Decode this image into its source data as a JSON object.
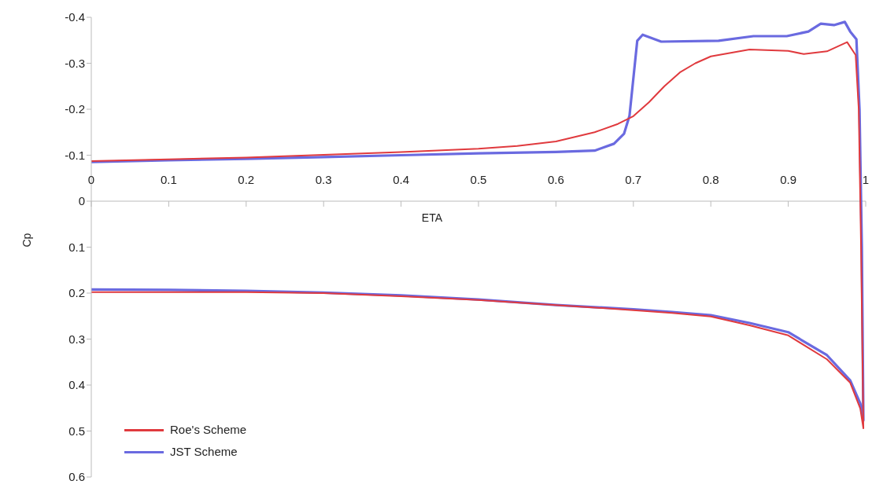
{
  "chart_data": {
    "type": "line",
    "xlabel": "ETA",
    "ylabel": "Cp",
    "xlim": [
      0,
      1
    ],
    "xticks": [
      0,
      0.1,
      0.2,
      0.3,
      0.4,
      0.5,
      0.6,
      0.7,
      0.8,
      0.9,
      1
    ],
    "ylim": [
      0.6,
      -0.4
    ],
    "yticks": [
      -0.4,
      -0.3,
      -0.2,
      -0.1,
      0,
      0.1,
      0.2,
      0.3,
      0.4,
      0.5,
      0.6
    ],
    "grid": false,
    "legend": "bottom left",
    "marker": "none",
    "line_style": "solid",
    "series": [
      {
        "name": "Roe's Scheme",
        "color": "#e03a3e",
        "x": [
          0,
          0.1,
          0.2,
          0.3,
          0.4,
          0.5,
          0.55,
          0.6,
          0.65,
          0.68,
          0.7,
          0.72,
          0.74,
          0.76,
          0.78,
          0.8,
          0.85,
          0.9,
          0.92,
          0.95,
          0.976,
          0.987,
          0.991,
          0.994,
          0.997,
          0.993,
          0.98,
          0.95,
          0.9,
          0.85,
          0.8,
          0.75,
          0.7,
          0.6,
          0.5,
          0.4,
          0.3,
          0.2,
          0.1,
          0
        ],
        "values": [
          -0.087,
          -0.091,
          -0.095,
          -0.101,
          -0.107,
          -0.114,
          -0.12,
          -0.13,
          -0.15,
          -0.168,
          -0.185,
          -0.215,
          -0.25,
          -0.28,
          -0.3,
          -0.315,
          -0.33,
          -0.327,
          -0.32,
          -0.326,
          -0.346,
          -0.318,
          -0.2,
          0.1,
          0.494,
          0.451,
          0.395,
          0.344,
          0.292,
          0.27,
          0.251,
          0.243,
          0.237,
          0.226,
          0.215,
          0.207,
          0.2,
          0.198,
          0.198,
          0.198
        ]
      },
      {
        "name": "JST Scheme",
        "color": "#6a6ae0",
        "x": [
          0,
          0.1,
          0.2,
          0.3,
          0.4,
          0.5,
          0.6,
          0.65,
          0.675,
          0.688,
          0.695,
          0.705,
          0.712,
          0.736,
          0.81,
          0.855,
          0.898,
          0.926,
          0.942,
          0.959,
          0.973,
          0.98,
          0.988,
          0.992,
          0.995,
          0.997,
          0.993,
          0.98,
          0.95,
          0.9,
          0.85,
          0.8,
          0.75,
          0.7,
          0.6,
          0.5,
          0.4,
          0.3,
          0.2,
          0.1,
          0
        ],
        "values": [
          -0.085,
          -0.089,
          -0.092,
          -0.096,
          -0.1,
          -0.104,
          -0.107,
          -0.11,
          -0.125,
          -0.147,
          -0.186,
          -0.349,
          -0.362,
          -0.347,
          -0.349,
          -0.359,
          -0.359,
          -0.369,
          -0.386,
          -0.383,
          -0.39,
          -0.369,
          -0.352,
          -0.2,
          0.1,
          0.477,
          0.44,
          0.39,
          0.335,
          0.285,
          0.265,
          0.248,
          0.241,
          0.235,
          0.226,
          0.214,
          0.205,
          0.199,
          0.195,
          0.193,
          0.192
        ]
      }
    ]
  }
}
